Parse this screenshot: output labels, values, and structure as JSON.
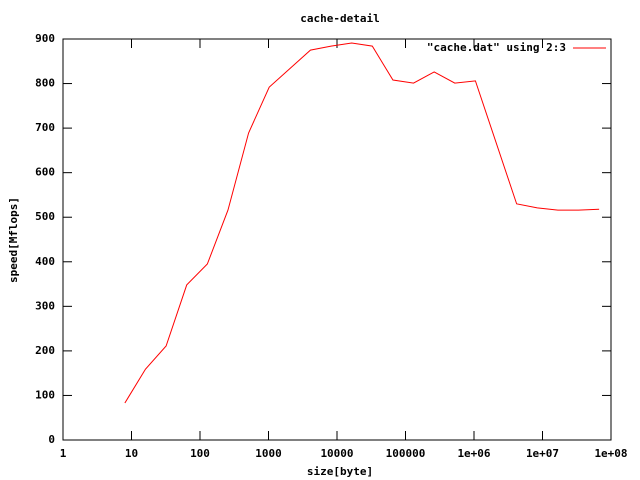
{
  "chart_data": {
    "type": "line",
    "title": "cache-detail",
    "x_label": "size[byte]",
    "y_label": "speed[Mflops]",
    "x": [
      8,
      16,
      32,
      64,
      128,
      256,
      512,
      1024,
      4096,
      8192,
      16384,
      32768,
      65536,
      131072,
      262144,
      524288,
      1048576,
      4194304,
      8388608,
      16777216,
      33554432,
      67108864
    ],
    "series": [
      {
        "name": "\"cache.dat\" using 2:3",
        "color": "#ff0000",
        "values": [
          83,
          159,
          211,
          348,
          395,
          516,
          689,
          792,
          875,
          884,
          891,
          884,
          808,
          801,
          826,
          801,
          806,
          530,
          521,
          516,
          516,
          518
        ]
      }
    ],
    "x_log": true,
    "xlim": [
      1,
      100000000
    ],
    "xticks": [
      1,
      10,
      100,
      1000,
      10000,
      100000,
      {
        "value": 1000000,
        "label": "1e+06"
      },
      {
        "value": 10000000,
        "label": "1e+07"
      },
      {
        "value": 100000000,
        "label": "1e+08"
      }
    ],
    "ylim": [
      0,
      900
    ],
    "yticks": [
      0,
      100,
      200,
      300,
      400,
      500,
      600,
      700,
      800,
      900
    ],
    "grid": false,
    "legend": "top-right"
  }
}
